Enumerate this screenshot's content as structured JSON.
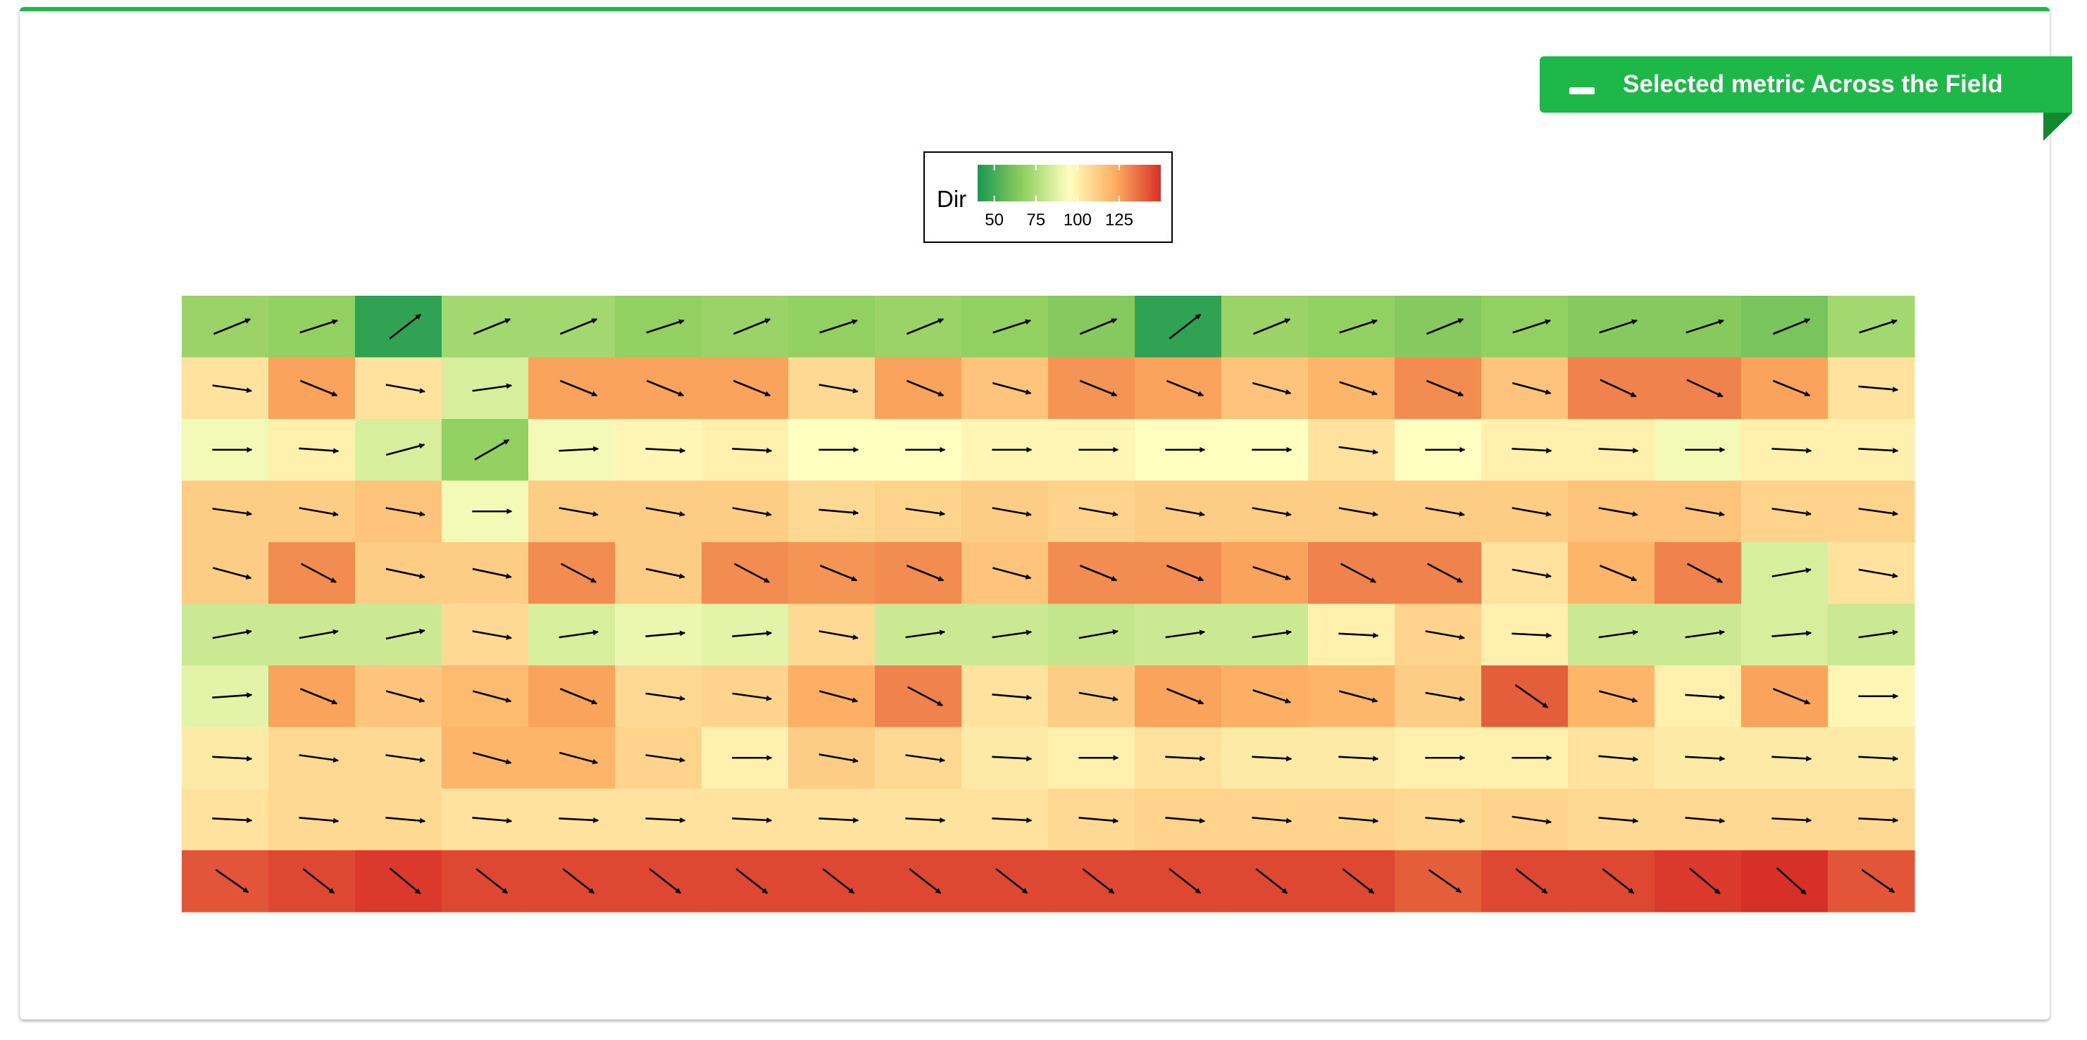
{
  "header": {
    "title": "Selected metric Across the Field",
    "accent_color": "#1db847",
    "collapse_icon": "minus-icon"
  },
  "chart_data": {
    "type": "heatmap",
    "title": "",
    "xlabel": "",
    "ylabel": "",
    "legend": {
      "title": "Dir",
      "ticks": [
        50,
        75,
        100,
        125
      ],
      "range": [
        40,
        150
      ],
      "colors": [
        "#1a9850",
        "#91cf60",
        "#ffffbf",
        "#fdae61",
        "#d73027"
      ],
      "placement": "top-center"
    },
    "rows": 10,
    "cols": 20,
    "values": [
      [
        70,
        68,
        45,
        72,
        72,
        68,
        70,
        68,
        70,
        68,
        65,
        45,
        70,
        68,
        65,
        68,
        65,
        65,
        62,
        72
      ],
      [
        105,
        125,
        105,
        85,
        125,
        125,
        125,
        108,
        125,
        115,
        128,
        125,
        115,
        120,
        130,
        115,
        132,
        132,
        125,
        105
      ],
      [
        92,
        100,
        85,
        68,
        92,
        98,
        100,
        95,
        95,
        98,
        98,
        95,
        95,
        105,
        95,
        100,
        100,
        92,
        100,
        100
      ],
      [
        112,
        112,
        115,
        92,
        112,
        112,
        112,
        108,
        110,
        112,
        110,
        112,
        112,
        112,
        112,
        112,
        115,
        115,
        110,
        110
      ],
      [
        112,
        130,
        112,
        112,
        130,
        112,
        130,
        128,
        130,
        115,
        130,
        130,
        125,
        132,
        132,
        105,
        120,
        132,
        85,
        105
      ],
      [
        82,
        82,
        82,
        108,
        85,
        90,
        88,
        108,
        82,
        82,
        80,
        82,
        82,
        100,
        110,
        100,
        82,
        82,
        85,
        82
      ],
      [
        88,
        125,
        115,
        118,
        125,
        108,
        110,
        122,
        132,
        105,
        112,
        125,
        122,
        120,
        112,
        140,
        120,
        100,
        125,
        98
      ],
      [
        102,
        108,
        108,
        120,
        120,
        110,
        100,
        112,
        108,
        102,
        100,
        105,
        102,
        102,
        100,
        100,
        105,
        102,
        102,
        102
      ],
      [
        105,
        108,
        108,
        105,
        105,
        105,
        105,
        105,
        105,
        105,
        108,
        110,
        110,
        110,
        108,
        110,
        108,
        108,
        108,
        108
      ],
      [
        142,
        145,
        148,
        145,
        145,
        145,
        145,
        145,
        145,
        145,
        145,
        145,
        145,
        145,
        140,
        145,
        145,
        148,
        150,
        142
      ]
    ],
    "arrow_angles_deg": [
      [
        -22,
        -18,
        -38,
        -22,
        -22,
        -18,
        -22,
        -18,
        -22,
        -18,
        -22,
        -38,
        -22,
        -18,
        -22,
        -18,
        -18,
        -18,
        -22,
        -18
      ],
      [
        8,
        22,
        10,
        -8,
        22,
        22,
        22,
        10,
        22,
        15,
        22,
        22,
        15,
        18,
        22,
        15,
        25,
        25,
        22,
        5
      ],
      [
        0,
        4,
        -15,
        -30,
        -3,
        3,
        3,
        0,
        0,
        0,
        0,
        0,
        0,
        8,
        0,
        3,
        3,
        0,
        3,
        3
      ],
      [
        8,
        10,
        10,
        0,
        10,
        10,
        10,
        5,
        8,
        10,
        10,
        10,
        10,
        10,
        10,
        10,
        10,
        10,
        8,
        8
      ],
      [
        15,
        28,
        12,
        12,
        28,
        12,
        28,
        22,
        22,
        15,
        22,
        22,
        18,
        28,
        28,
        10,
        22,
        28,
        -10,
        10
      ],
      [
        -10,
        -10,
        -12,
        10,
        -8,
        -5,
        -5,
        10,
        -8,
        -8,
        -10,
        -8,
        -8,
        3,
        10,
        3,
        -8,
        -8,
        -5,
        -8
      ],
      [
        -4,
        22,
        15,
        15,
        22,
        8,
        8,
        15,
        28,
        5,
        10,
        22,
        18,
        15,
        10,
        35,
        15,
        4,
        22,
        0
      ],
      [
        3,
        8,
        8,
        15,
        15,
        8,
        0,
        10,
        8,
        3,
        0,
        3,
        3,
        3,
        0,
        0,
        5,
        3,
        3,
        3
      ],
      [
        3,
        5,
        5,
        5,
        3,
        3,
        3,
        3,
        3,
        3,
        5,
        5,
        5,
        5,
        5,
        8,
        5,
        5,
        3,
        3
      ],
      [
        35,
        38,
        40,
        38,
        38,
        38,
        38,
        38,
        38,
        38,
        38,
        38,
        38,
        38,
        35,
        38,
        38,
        40,
        42,
        35
      ]
    ]
  }
}
